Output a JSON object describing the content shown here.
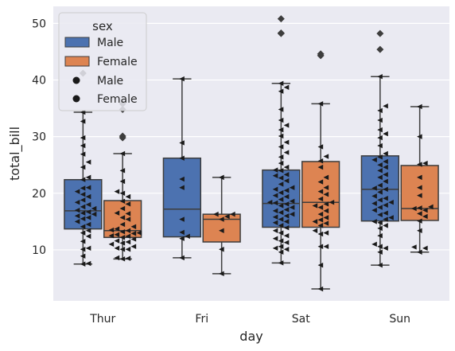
{
  "chart_data": {
    "type": "box",
    "xlabel": "day",
    "ylabel": "total_bill",
    "categories": [
      "Thur",
      "Fri",
      "Sat",
      "Sun"
    ],
    "ylim": [
      1,
      53
    ],
    "yticks": [
      10,
      20,
      30,
      40,
      50
    ],
    "grid": true,
    "legend": {
      "title": "sex",
      "placement": "top-left",
      "entries": [
        "Male",
        "Female",
        "Male",
        "Female"
      ]
    },
    "colors": {
      "Male": "#4c72b0",
      "Female": "#dd8452",
      "background": "#eaeaf2",
      "swarm": "#1a1a1a"
    },
    "series": [
      {
        "name": "Male",
        "boxes": [
          {
            "q1": 13.7,
            "median": 16.9,
            "q3": 22.4,
            "whislo": 7.5,
            "whishi": 34.3,
            "fliers": [
              41.2
            ]
          },
          {
            "q1": 12.3,
            "median": 17.2,
            "q3": 26.2,
            "whislo": 8.6,
            "whishi": 40.2,
            "fliers": []
          },
          {
            "q1": 14.0,
            "median": 18.2,
            "q3": 24.1,
            "whislo": 7.7,
            "whishi": 39.4,
            "fliers": [
              48.3,
              48.2,
              50.8
            ]
          },
          {
            "q1": 15.1,
            "median": 20.7,
            "q3": 26.6,
            "whislo": 7.3,
            "whishi": 40.6,
            "fliers": [
              45.4,
              48.2
            ]
          }
        ],
        "points": [
          [
            7.5,
            7.6,
            8.9,
            10.1,
            10.3,
            11.5,
            12.4,
            13.0,
            13.4,
            14.1,
            14.5,
            15.0,
            15.5,
            15.7,
            16.0,
            16.3,
            16.5,
            16.7,
            17.0,
            17.3,
            17.6,
            18.0,
            18.4,
            18.8,
            19.4,
            19.8,
            20.3,
            20.9,
            21.0,
            22.4,
            22.8,
            24.6,
            25.5,
            26.9,
            28.4,
            29.8,
            32.7,
            34.3
          ],
          [
            8.6,
            12.0,
            12.4,
            13.1,
            15.4,
            21.0,
            22.5,
            26.2,
            28.9,
            40.2
          ],
          [
            7.7,
            9.6,
            10.1,
            10.3,
            10.6,
            11.3,
            11.6,
            12.0,
            12.5,
            13.0,
            13.4,
            13.9,
            14.3,
            14.8,
            15.0,
            15.4,
            15.8,
            16.0,
            16.3,
            16.6,
            16.9,
            17.1,
            17.5,
            17.8,
            18.1,
            18.3,
            18.4,
            18.6,
            18.9,
            19.4,
            19.6,
            20.1,
            20.5,
            20.7,
            21.0,
            21.6,
            22.2,
            22.7,
            23.1,
            23.3,
            24.0,
            24.1,
            24.6,
            25.3,
            26.4,
            27.2,
            28.2,
            29.0,
            30.1,
            31.2,
            32.0,
            32.9,
            34.8,
            38.0,
            38.7,
            39.4
          ],
          [
            7.3,
            9.6,
            10.3,
            10.6,
            11.0,
            12.5,
            13.8,
            14.3,
            14.8,
            15.0,
            15.4,
            15.7,
            16.2,
            16.5,
            17.0,
            17.5,
            17.9,
            18.2,
            18.4,
            18.8,
            19.1,
            19.5,
            20.2,
            20.7,
            20.9,
            21.4,
            22.1,
            22.8,
            23.3,
            24.0,
            24.6,
            25.0,
            25.6,
            25.9,
            26.4,
            27.0,
            28.4,
            29.8,
            30.5,
            31.2,
            32.9,
            34.6,
            35.4,
            40.6
          ]
        ]
      },
      {
        "name": "Female",
        "boxes": [
          {
            "q1": 12.2,
            "median": 13.4,
            "q3": 18.7,
            "whislo": 8.4,
            "whishi": 27.0,
            "fliers": [
              29.8,
              30.1,
              34.8,
              35.8
            ]
          },
          {
            "q1": 11.4,
            "median": 15.4,
            "q3": 16.3,
            "whislo": 5.8,
            "whishi": 22.8,
            "fliers": []
          },
          {
            "q1": 14.0,
            "median": 18.4,
            "q3": 25.6,
            "whislo": 3.1,
            "whishi": 35.8,
            "fliers": [
              44.3,
              44.6
            ]
          },
          {
            "q1": 15.2,
            "median": 17.3,
            "q3": 24.9,
            "whislo": 9.6,
            "whishi": 35.3,
            "fliers": []
          }
        ],
        "points": [
          [
            8.4,
            8.5,
            8.6,
            10.1,
            10.1,
            10.3,
            10.6,
            11.0,
            11.2,
            11.4,
            11.6,
            11.9,
            12.2,
            12.4,
            12.5,
            12.7,
            12.9,
            13.0,
            13.2,
            13.4,
            13.5,
            13.7,
            14.1,
            14.5,
            15.4,
            15.7,
            16.4,
            16.5,
            17.3,
            18.1,
            18.6,
            19.4,
            20.0,
            20.3,
            22.1,
            24.0,
            27.0
          ],
          [
            5.8,
            10.1,
            13.4,
            15.4,
            15.9,
            16.3,
            16.3,
            22.8
          ],
          [
            3.1,
            7.3,
            10.6,
            10.6,
            12.8,
            13.0,
            13.4,
            14.3,
            14.7,
            15.0,
            15.3,
            15.7,
            16.3,
            16.9,
            17.5,
            17.8,
            18.1,
            18.4,
            19.0,
            19.8,
            20.3,
            21.0,
            22.0,
            22.8,
            24.6,
            25.7,
            26.5,
            28.2,
            35.8
          ],
          [
            9.6,
            10.3,
            10.5,
            13.4,
            15.1,
            15.9,
            16.4,
            17.0,
            17.3,
            17.4,
            17.6,
            19.6,
            21.0,
            22.8,
            25.1,
            25.3,
            30.0,
            35.3
          ]
        ]
      }
    ]
  }
}
